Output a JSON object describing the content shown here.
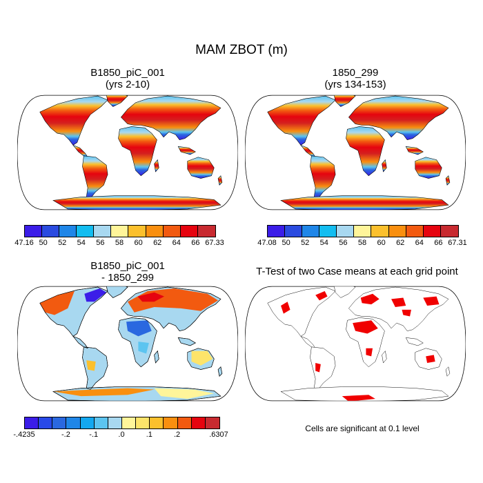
{
  "title": "MAM ZBOT (m)",
  "panels": [
    {
      "title_line1": "B1850_piC_001",
      "title_line2": "(yrs 2-10)"
    },
    {
      "title_line1": "1850_299",
      "title_line2": "(yrs 134-153)"
    },
    {
      "title_line1": "B1850_piC_001",
      "title_line2": "- 1850_299"
    },
    {
      "title_line1": "T-Test of two Case means at each grid point",
      "title_line2": ""
    }
  ],
  "colorbars": {
    "top_left": {
      "labels": [
        "47.16",
        "50",
        "52",
        "54",
        "56",
        "58",
        "60",
        "62",
        "64",
        "66",
        "67.33"
      ],
      "colors": [
        "#3b1de8",
        "#2a4be0",
        "#1f86e8",
        "#13bdf0",
        "#a8d8f0",
        "#fff59a",
        "#fbc02d",
        "#f98f0f",
        "#f25a10",
        "#e6040f",
        "#c82a30"
      ]
    },
    "top_right": {
      "labels": [
        "47.08",
        "50",
        "52",
        "54",
        "56",
        "58",
        "60",
        "62",
        "64",
        "66",
        "67.31"
      ],
      "colors": [
        "#3b1de8",
        "#2a4be0",
        "#1f86e8",
        "#13bdf0",
        "#a8d8f0",
        "#fff59a",
        "#fbc02d",
        "#f98f0f",
        "#f25a10",
        "#e6040f",
        "#c82a30"
      ]
    },
    "bottom_left": {
      "labels": [
        "-.4235",
        "-.2",
        "-.1",
        ".0",
        ".1",
        ".2",
        ".6307"
      ],
      "colors": [
        "#3b1de8",
        "#2849e8",
        "#2a68e0",
        "#1f86e8",
        "#13a8f0",
        "#5cc4f0",
        "#a8d8f0",
        "#fff59a",
        "#fde46a",
        "#fbc02d",
        "#f98f0f",
        "#f25a10",
        "#e6040f",
        "#c82a30"
      ]
    }
  },
  "footnote": "Cells are significant at 0.1 level"
}
